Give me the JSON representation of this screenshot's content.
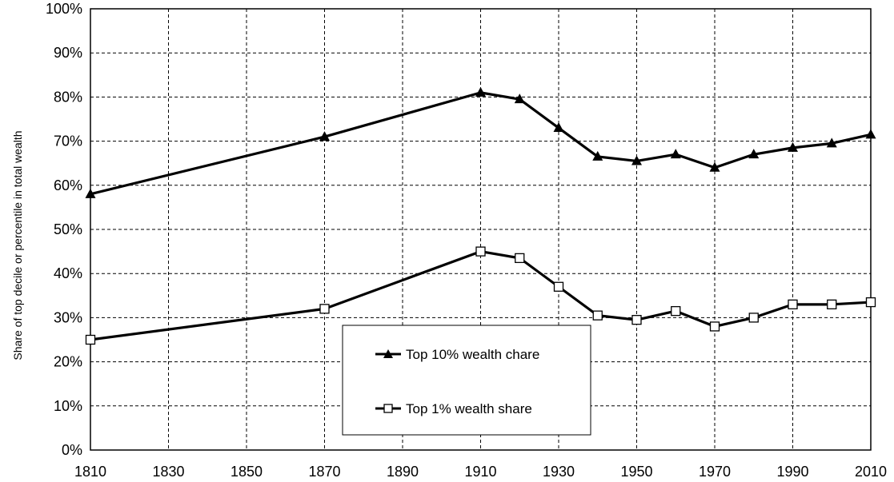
{
  "chart_data": {
    "type": "line",
    "title": "",
    "xlabel": "",
    "ylabel": "Share of top decile or percentile in total wealth",
    "xlim": [
      1810,
      2010
    ],
    "ylim": [
      0,
      100
    ],
    "x_ticks": [
      1810,
      1830,
      1850,
      1870,
      1890,
      1910,
      1930,
      1950,
      1970,
      1990,
      2010
    ],
    "y_ticks": [
      0,
      10,
      20,
      30,
      40,
      50,
      60,
      70,
      80,
      90,
      100
    ],
    "x_tick_labels": [
      "1810",
      "1830",
      "1850",
      "1870",
      "1890",
      "1910",
      "1930",
      "1950",
      "1970",
      "1990",
      "2010"
    ],
    "y_tick_labels": [
      "0%",
      "10%",
      "20%",
      "30%",
      "40%",
      "50%",
      "60%",
      "70%",
      "80%",
      "90%",
      "100%"
    ],
    "grid": true,
    "legend_position": "bottom-center",
    "series": [
      {
        "name": "Top 10% wealth chare",
        "marker": "filled-triangle",
        "color": "#000000",
        "x": [
          1810,
          1870,
          1910,
          1920,
          1930,
          1940,
          1950,
          1960,
          1970,
          1980,
          1990,
          2000,
          2010
        ],
        "values": [
          58,
          71,
          81,
          79.5,
          73,
          66.5,
          65.5,
          67,
          64,
          67,
          68.5,
          69.5,
          71.5
        ]
      },
      {
        "name": "Top 1% wealth share",
        "marker": "open-square",
        "color": "#000000",
        "x": [
          1810,
          1870,
          1910,
          1920,
          1930,
          1940,
          1950,
          1960,
          1970,
          1980,
          1990,
          2000,
          2010
        ],
        "values": [
          25,
          32,
          45,
          43.5,
          37,
          30.5,
          29.5,
          31.5,
          28,
          30,
          33,
          33,
          33.5
        ]
      }
    ]
  }
}
